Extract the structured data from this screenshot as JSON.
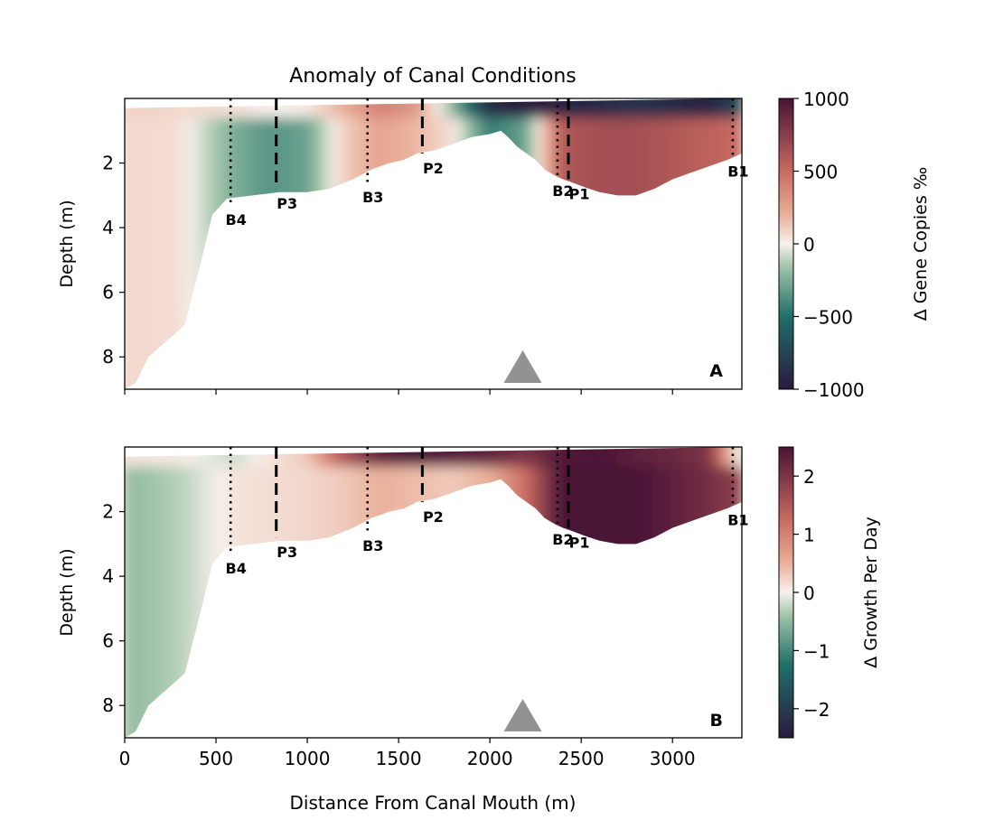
{
  "chart_data": {
    "type": "heatmap",
    "title": "Anomaly of Canal Conditions",
    "xlabel": "Distance From Canal Mouth (m)",
    "xlim": [
      0,
      3380
    ],
    "xticks": [
      "0",
      "500",
      "1000",
      "1500",
      "2000",
      "2500",
      "3000"
    ],
    "xtick_values": [
      0,
      500,
      1000,
      1500,
      2000,
      2500,
      3000
    ],
    "colors": {
      "deep_neg": "#2a1a3e",
      "neg": "#1f6f6a",
      "light_neg": "#9fc4a8",
      "zero": "#f7f1ec",
      "light_pos": "#eab09a",
      "pos": "#c96a5f",
      "deep_pos": "#4a1236",
      "marker": "#929292"
    },
    "markers": {
      "triangle_x": 2180,
      "B": [
        {
          "label": "B4",
          "x": 580,
          "depth": 3.3
        },
        {
          "label": "B3",
          "x": 1330,
          "depth": 2.6
        },
        {
          "label": "B2",
          "x": 2370,
          "depth": 2.4
        },
        {
          "label": "B1",
          "x": 3330,
          "depth": 1.8
        }
      ],
      "P": [
        {
          "label": "P3",
          "x": 830,
          "depth": 2.8
        },
        {
          "label": "P2",
          "x": 1630,
          "depth": 1.7
        },
        {
          "label": "P1",
          "x": 2430,
          "depth": 2.5
        }
      ]
    },
    "bathymetry": {
      "x": [
        0,
        60,
        130,
        230,
        330,
        420,
        480,
        560,
        700,
        850,
        1000,
        1120,
        1250,
        1350,
        1450,
        1530,
        1600,
        1700,
        1800,
        1900,
        2000,
        2060,
        2100,
        2150,
        2200,
        2250,
        2300,
        2360,
        2400,
        2450,
        2520,
        2600,
        2700,
        2800,
        2900,
        3000,
        3100,
        3200,
        3300,
        3380
      ],
      "depth": [
        9.0,
        8.8,
        8.0,
        7.5,
        7.0,
        5.0,
        3.6,
        3.1,
        3.0,
        2.9,
        2.9,
        2.8,
        2.5,
        2.2,
        2.0,
        1.9,
        1.7,
        1.6,
        1.4,
        1.2,
        1.1,
        1.0,
        1.2,
        1.5,
        1.7,
        1.9,
        2.2,
        2.4,
        2.5,
        2.6,
        2.75,
        2.9,
        3.0,
        3.0,
        2.8,
        2.5,
        2.3,
        2.1,
        1.9,
        1.7
      ]
    },
    "panels": [
      {
        "label": "A",
        "ylabel": "Depth (m)",
        "ylim": [
          9,
          0
        ],
        "yticks": [
          "2",
          "4",
          "6",
          "8"
        ],
        "ytick_values": [
          2,
          4,
          6,
          8
        ],
        "colorbar": {
          "label": "Δ Gene Copies ‰",
          "range": [
            -1000,
            1000
          ],
          "ticks": [
            "1000",
            "500",
            "0",
            "−500",
            "−1000"
          ],
          "tick_values": [
            1000,
            500,
            0,
            -500,
            -1000
          ]
        },
        "surface_anomaly": {
          "x": [
            0,
            300,
            600,
            800,
            1000,
            1200,
            1400,
            1600,
            1800,
            2000,
            2200,
            2400,
            2600,
            2800,
            3000,
            3200,
            3380
          ],
          "values": [
            100,
            80,
            50,
            0,
            20,
            200,
            400,
            300,
            -200,
            -900,
            -1000,
            -950,
            -900,
            -850,
            -900,
            -950,
            -700
          ]
        },
        "subsurface_anomaly": {
          "x": [
            0,
            300,
            600,
            800,
            1000,
            1200,
            1400,
            1600,
            1800,
            2000,
            2200,
            2400,
            2600,
            2800,
            3000,
            3200,
            3380
          ],
          "values": [
            80,
            60,
            -250,
            -350,
            -300,
            100,
            250,
            180,
            50,
            -450,
            -300,
            600,
            650,
            650,
            600,
            550,
            500
          ]
        }
      },
      {
        "label": "B",
        "ylabel": "Depth (m)",
        "ylim": [
          9,
          0
        ],
        "yticks": [
          "2",
          "4",
          "6",
          "8"
        ],
        "ytick_values": [
          2,
          4,
          6,
          8
        ],
        "colorbar": {
          "label": "Δ Growth Per Day",
          "range": [
            -2.5,
            2.5
          ],
          "ticks": [
            "2",
            "1",
            "0",
            "−1",
            "−2"
          ],
          "tick_values": [
            2,
            1,
            0,
            -1,
            -2
          ]
        },
        "surface_anomaly": {
          "x": [
            0,
            300,
            600,
            800,
            1000,
            1200,
            1400,
            1600,
            1800,
            2000,
            2200,
            2400,
            2600,
            2800,
            3000,
            3200,
            3380
          ],
          "values": [
            0.1,
            0.05,
            -0.2,
            0.1,
            0.3,
            1.5,
            2.3,
            2.5,
            2.4,
            2.3,
            2.0,
            2.4,
            2.5,
            2.3,
            2.2,
            2.0,
            -0.3
          ]
        },
        "subsurface_anomaly": {
          "x": [
            0,
            300,
            600,
            800,
            1000,
            1200,
            1400,
            1600,
            1800,
            2000,
            2200,
            2400,
            2600,
            2800,
            3000,
            3200,
            3380
          ],
          "values": [
            -0.5,
            -0.3,
            0.1,
            0.15,
            0.2,
            0.3,
            0.5,
            0.4,
            0.3,
            0.5,
            1.2,
            2.5,
            2.5,
            2.5,
            2.3,
            2.1,
            1.8
          ]
        }
      }
    ]
  }
}
